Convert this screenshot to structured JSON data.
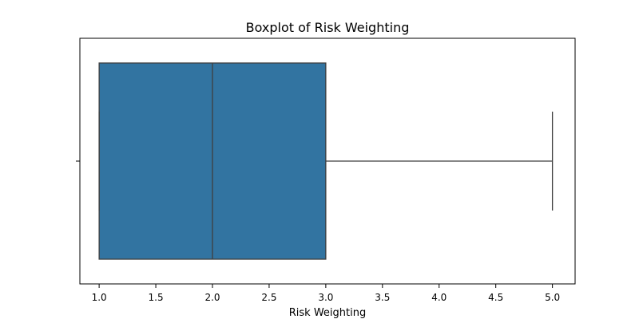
{
  "chart_data": {
    "type": "box",
    "title": "Boxplot of Risk Weighting",
    "xlabel": "Risk Weighting",
    "ylabel": "",
    "xlim": [
      0.83,
      5.2
    ],
    "x_ticks": [
      1.0,
      1.5,
      2.0,
      2.5,
      3.0,
      3.5,
      4.0,
      4.5,
      5.0
    ],
    "x_tick_labels": [
      "1.0",
      "1.5",
      "2.0",
      "2.5",
      "3.0",
      "3.5",
      "4.0",
      "4.5",
      "5.0"
    ],
    "grid": false,
    "box": {
      "min": 1.0,
      "q1": 1.0,
      "median": 2.0,
      "q3": 3.0,
      "max": 5.0
    },
    "colors": {
      "box_fill": "#3274a1",
      "box_edge": "#3f3f3f",
      "axis": "#000000",
      "background": "#ffffff"
    }
  }
}
